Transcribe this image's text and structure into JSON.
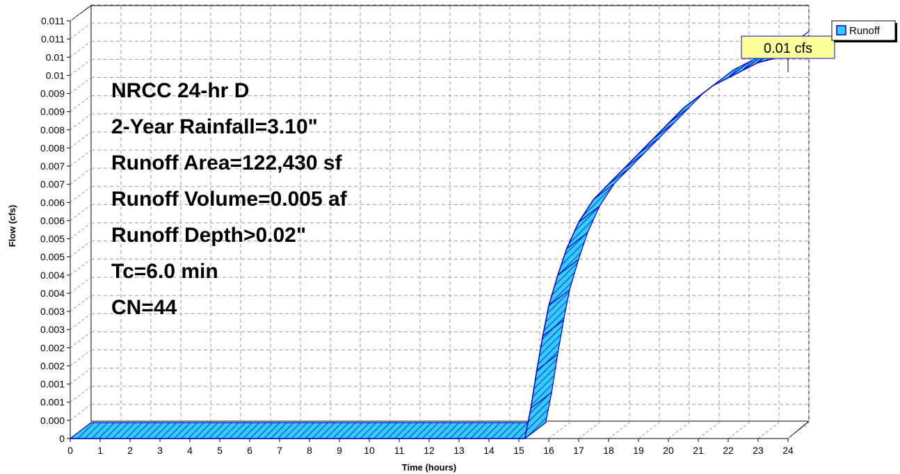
{
  "chart_data": {
    "type": "area",
    "title": "",
    "xlabel": "Time  (hours)",
    "ylabel": "Flow  (cfs)",
    "xlim": [
      0,
      24
    ],
    "ylim": [
      0,
      0.011
    ],
    "x_ticks": [
      "0",
      "1",
      "2",
      "3",
      "4",
      "5",
      "6",
      "7",
      "8",
      "9",
      "10",
      "11",
      "12",
      "13",
      "14",
      "15",
      "16",
      "17",
      "18",
      "19",
      "20",
      "21",
      "22",
      "23",
      "24"
    ],
    "y_ticks": [
      "0",
      "0.000",
      "0.001",
      "0.001",
      "0.002",
      "0.002",
      "0.003",
      "0.003",
      "0.004",
      "0.004",
      "0.005",
      "0.005",
      "0.006",
      "0.006",
      "0.007",
      "0.007",
      "0.008",
      "0.008",
      "0.009",
      "0.009",
      "0.01",
      "0.01",
      "0.011",
      "0.011"
    ],
    "grid": true,
    "legend": {
      "position": "top-right",
      "entries": [
        "Runoff"
      ]
    },
    "series": [
      {
        "name": "Runoff",
        "color": "#33ccff",
        "outline_color": "#0000cc",
        "x": [
          0,
          15.2,
          15.4,
          15.6,
          15.8,
          16.0,
          16.3,
          16.6,
          17.0,
          17.5,
          18.0,
          18.5,
          19.0,
          19.5,
          20.0,
          20.5,
          21.0,
          21.5,
          22.0,
          22.5,
          23.0,
          23.5,
          24.0
        ],
        "values": [
          0,
          0,
          0.0008,
          0.0018,
          0.0027,
          0.0035,
          0.0043,
          0.005,
          0.0057,
          0.0063,
          0.0067,
          0.0071,
          0.0075,
          0.0079,
          0.0083,
          0.0087,
          0.009,
          0.0093,
          0.0095,
          0.0097,
          0.0099,
          0.01,
          0.0103
        ]
      }
    ],
    "annotations": {
      "peak_label": "0.01 cfs",
      "info_lines": [
        "NRCC 24-hr D",
        "2-Year Rainfall=3.10\"",
        "Runoff Area=122,430 sf",
        "Runoff Volume=0.005 af",
        "Runoff Depth>0.02\"",
        "Tc=6.0 min",
        "CN=44"
      ]
    },
    "colors": {
      "label_box": "#ffff99",
      "grid": "#999999"
    }
  }
}
